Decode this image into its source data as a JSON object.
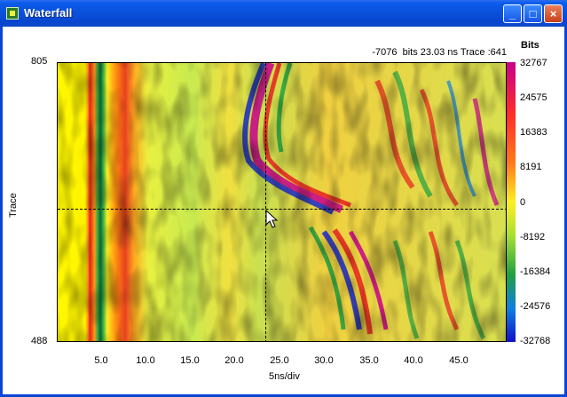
{
  "window": {
    "title": "Waterfall",
    "minimize": "_",
    "maximize": "□",
    "close": "×"
  },
  "readout": "-7076  bits 23.03 ns Trace :641",
  "y_axis": {
    "label": "Trace",
    "top": "805",
    "bottom": "488"
  },
  "x_axis": {
    "label": "5ns/div",
    "ticks": [
      "5.0",
      "10.0",
      "15.0",
      "20.0",
      "25.0",
      "30.0",
      "35.0",
      "40.0",
      "45.0"
    ]
  },
  "colorbar": {
    "title": "Bits",
    "ticks": [
      "32767",
      "24575",
      "16383",
      "8191",
      "0",
      "-8192",
      "-16384",
      "-24576",
      "-32768"
    ]
  },
  "colors": {
    "titlebar": "#0a50da",
    "frame": "#0a46d6"
  }
}
